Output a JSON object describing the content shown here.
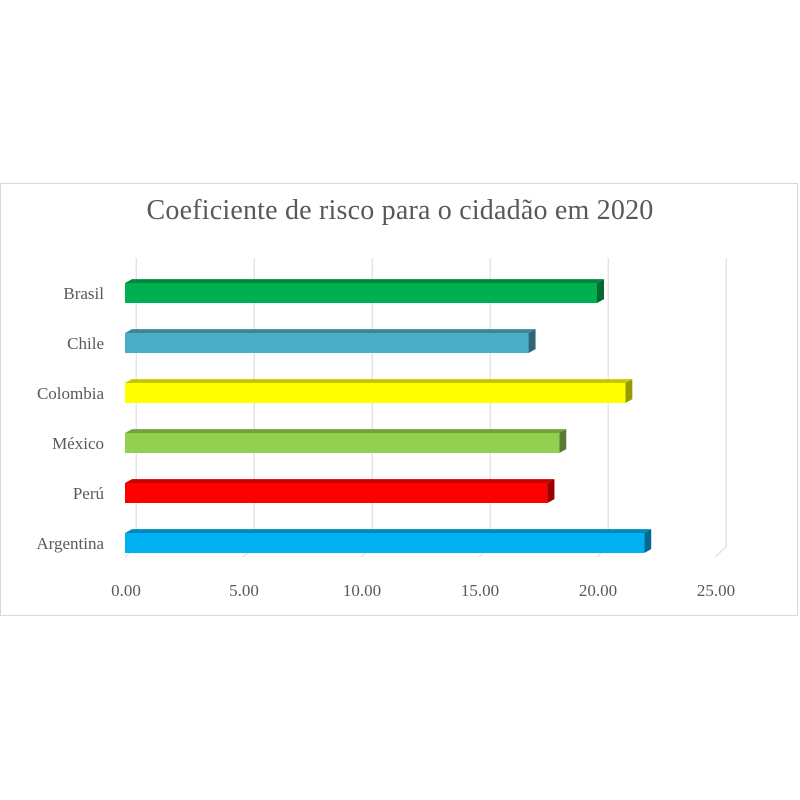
{
  "chart_data": {
    "type": "bar",
    "orientation": "horizontal",
    "title": "Coeficiente de risco para o cidadão em 2020",
    "xlabel": "",
    "ylabel": "",
    "categories": [
      "Brasil",
      "Chile",
      "Colombia",
      "México",
      "Perú",
      "Argentina"
    ],
    "values": [
      20.0,
      17.1,
      21.2,
      18.4,
      17.9,
      22.0
    ],
    "colors": [
      "#00b050",
      "#4bacc6",
      "#ffff00",
      "#92d050",
      "#ff0000",
      "#00b0f0"
    ],
    "xlim": [
      0,
      25
    ],
    "xticks": [
      "0.00",
      "5.00",
      "10.00",
      "15.00",
      "20.00",
      "25.00"
    ],
    "grid": true,
    "style": "3d-bar"
  }
}
